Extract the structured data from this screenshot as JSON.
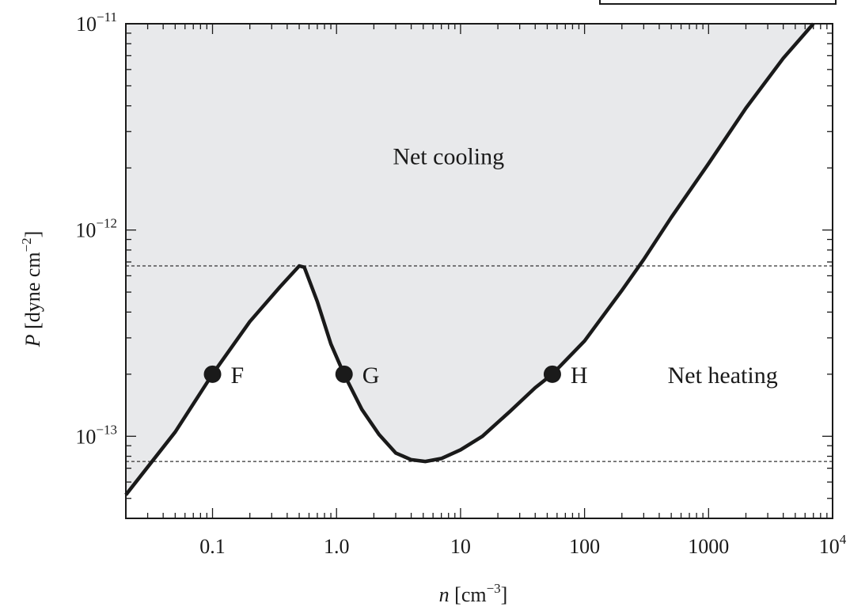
{
  "chart_data": {
    "type": "line",
    "title": "",
    "xscale": "log",
    "yscale": "log",
    "xlim": [
      0.02,
      10000
    ],
    "ylim": [
      4e-14,
      1e-11
    ],
    "x_tick_labels": [
      {
        "value": 0.1,
        "label": "0.1"
      },
      {
        "value": 1,
        "label": "1.0"
      },
      {
        "value": 10,
        "label": "10"
      },
      {
        "value": 100,
        "label": "100"
      },
      {
        "value": 1000,
        "label": "1000"
      },
      {
        "value": 10000,
        "label_base": "10",
        "label_exp": "4"
      }
    ],
    "y_tick_labels": [
      {
        "value": 1e-11,
        "label_base": "10",
        "label_exp": "−11"
      },
      {
        "value": 1e-12,
        "label_base": "10",
        "label_exp": "−12"
      },
      {
        "value": 1e-13,
        "label_base": "10",
        "label_exp": "−13"
      }
    ],
    "xlabel": {
      "var": "n",
      "unit_open": " [cm",
      "unit_exp": "−3",
      "unit_close": "]"
    },
    "ylabel": {
      "var": "P",
      "unit_open": " [dyne cm",
      "unit_exp": "−2",
      "unit_close": "]"
    },
    "series": [
      {
        "points": [
          [
            0.02,
            5.2e-14
          ],
          [
            0.05,
            1.05e-13
          ],
          [
            0.1,
            2e-13
          ],
          [
            0.2,
            3.6e-13
          ],
          [
            0.35,
            5.3e-13
          ],
          [
            0.5,
            6.7e-13
          ],
          [
            0.55,
            6.6e-13
          ],
          [
            0.7,
            4.5e-13
          ],
          [
            0.9,
            2.8e-13
          ],
          [
            1.15,
            2e-13
          ],
          [
            1.6,
            1.35e-13
          ],
          [
            2.2,
            1.02e-13
          ],
          [
            3.0,
            8.3e-14
          ],
          [
            4.0,
            7.7e-14
          ],
          [
            5.2,
            7.55e-14
          ],
          [
            7.0,
            7.8e-14
          ],
          [
            10,
            8.6e-14
          ],
          [
            15,
            1e-13
          ],
          [
            25,
            1.32e-13
          ],
          [
            40,
            1.72e-13
          ],
          [
            55,
            2e-13
          ],
          [
            100,
            2.9e-13
          ],
          [
            200,
            5.1e-13
          ],
          [
            300,
            7.2e-13
          ],
          [
            500,
            1.15e-12
          ],
          [
            1000,
            2.1e-12
          ],
          [
            2000,
            3.9e-12
          ],
          [
            4000,
            6.8e-12
          ],
          [
            7000,
            1e-11
          ]
        ]
      }
    ],
    "reference_lines_y": [
      6.7e-13,
      7.55e-14
    ],
    "marked_points": [
      {
        "label": "F",
        "x": 0.1,
        "y": 2e-13
      },
      {
        "label": "G",
        "x": 1.15,
        "y": 2e-13
      },
      {
        "label": "H",
        "x": 55,
        "y": 2e-13
      }
    ],
    "annotations": [
      {
        "text": "Net cooling",
        "x": 8,
        "y": 2.3e-12
      },
      {
        "text": "Net heating",
        "x": 1300,
        "y": 2e-13
      }
    ],
    "grid": false,
    "colors": {
      "curve": "#1a1a1a",
      "shaded_region": "#e8e9eb",
      "reference_line": "#333333"
    }
  }
}
